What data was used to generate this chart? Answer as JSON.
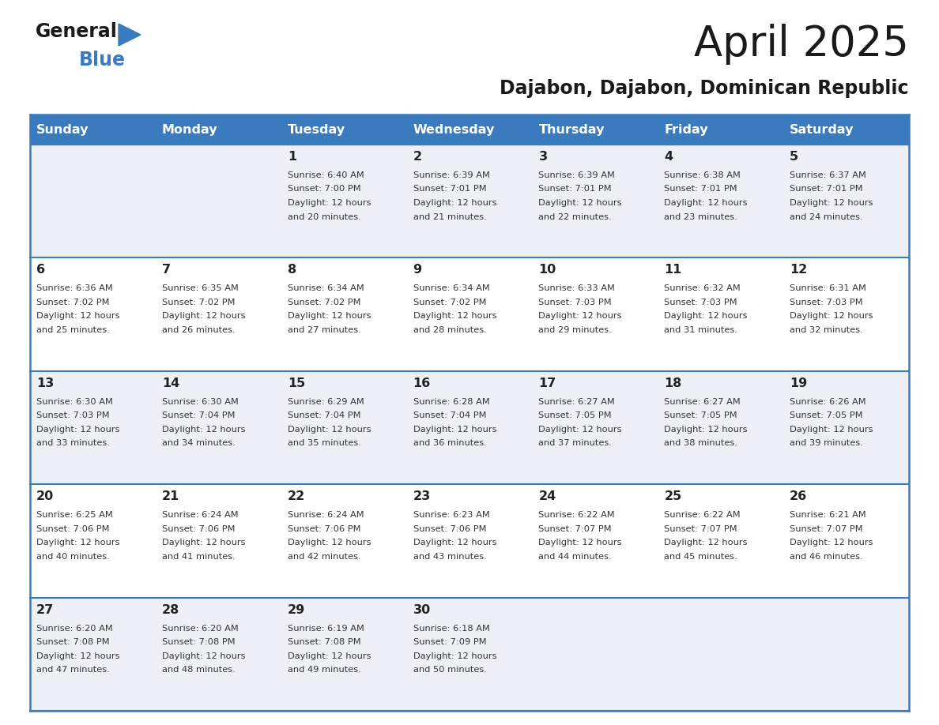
{
  "title": "April 2025",
  "subtitle": "Dajabon, Dajabon, Dominican Republic",
  "days_of_week": [
    "Sunday",
    "Monday",
    "Tuesday",
    "Wednesday",
    "Thursday",
    "Friday",
    "Saturday"
  ],
  "header_bg": "#3a7bbf",
  "header_text": "#ffffff",
  "row_bg_even": "#edf1f7",
  "row_bg_odd": "#ffffff",
  "cell_text_color": "#333333",
  "day_num_color": "#222222",
  "grid_line_color": "#3a7bbf",
  "calendar_data": [
    [
      {
        "day": "",
        "sunrise": "",
        "sunset": "",
        "daylight": ""
      },
      {
        "day": "",
        "sunrise": "",
        "sunset": "",
        "daylight": ""
      },
      {
        "day": "1",
        "sunrise": "6:40 AM",
        "sunset": "7:00 PM",
        "daylight": "12 hours\nand 20 minutes."
      },
      {
        "day": "2",
        "sunrise": "6:39 AM",
        "sunset": "7:01 PM",
        "daylight": "12 hours\nand 21 minutes."
      },
      {
        "day": "3",
        "sunrise": "6:39 AM",
        "sunset": "7:01 PM",
        "daylight": "12 hours\nand 22 minutes."
      },
      {
        "day": "4",
        "sunrise": "6:38 AM",
        "sunset": "7:01 PM",
        "daylight": "12 hours\nand 23 minutes."
      },
      {
        "day": "5",
        "sunrise": "6:37 AM",
        "sunset": "7:01 PM",
        "daylight": "12 hours\nand 24 minutes."
      }
    ],
    [
      {
        "day": "6",
        "sunrise": "6:36 AM",
        "sunset": "7:02 PM",
        "daylight": "12 hours\nand 25 minutes."
      },
      {
        "day": "7",
        "sunrise": "6:35 AM",
        "sunset": "7:02 PM",
        "daylight": "12 hours\nand 26 minutes."
      },
      {
        "day": "8",
        "sunrise": "6:34 AM",
        "sunset": "7:02 PM",
        "daylight": "12 hours\nand 27 minutes."
      },
      {
        "day": "9",
        "sunrise": "6:34 AM",
        "sunset": "7:02 PM",
        "daylight": "12 hours\nand 28 minutes."
      },
      {
        "day": "10",
        "sunrise": "6:33 AM",
        "sunset": "7:03 PM",
        "daylight": "12 hours\nand 29 minutes."
      },
      {
        "day": "11",
        "sunrise": "6:32 AM",
        "sunset": "7:03 PM",
        "daylight": "12 hours\nand 31 minutes."
      },
      {
        "day": "12",
        "sunrise": "6:31 AM",
        "sunset": "7:03 PM",
        "daylight": "12 hours\nand 32 minutes."
      }
    ],
    [
      {
        "day": "13",
        "sunrise": "6:30 AM",
        "sunset": "7:03 PM",
        "daylight": "12 hours\nand 33 minutes."
      },
      {
        "day": "14",
        "sunrise": "6:30 AM",
        "sunset": "7:04 PM",
        "daylight": "12 hours\nand 34 minutes."
      },
      {
        "day": "15",
        "sunrise": "6:29 AM",
        "sunset": "7:04 PM",
        "daylight": "12 hours\nand 35 minutes."
      },
      {
        "day": "16",
        "sunrise": "6:28 AM",
        "sunset": "7:04 PM",
        "daylight": "12 hours\nand 36 minutes."
      },
      {
        "day": "17",
        "sunrise": "6:27 AM",
        "sunset": "7:05 PM",
        "daylight": "12 hours\nand 37 minutes."
      },
      {
        "day": "18",
        "sunrise": "6:27 AM",
        "sunset": "7:05 PM",
        "daylight": "12 hours\nand 38 minutes."
      },
      {
        "day": "19",
        "sunrise": "6:26 AM",
        "sunset": "7:05 PM",
        "daylight": "12 hours\nand 39 minutes."
      }
    ],
    [
      {
        "day": "20",
        "sunrise": "6:25 AM",
        "sunset": "7:06 PM",
        "daylight": "12 hours\nand 40 minutes."
      },
      {
        "day": "21",
        "sunrise": "6:24 AM",
        "sunset": "7:06 PM",
        "daylight": "12 hours\nand 41 minutes."
      },
      {
        "day": "22",
        "sunrise": "6:24 AM",
        "sunset": "7:06 PM",
        "daylight": "12 hours\nand 42 minutes."
      },
      {
        "day": "23",
        "sunrise": "6:23 AM",
        "sunset": "7:06 PM",
        "daylight": "12 hours\nand 43 minutes."
      },
      {
        "day": "24",
        "sunrise": "6:22 AM",
        "sunset": "7:07 PM",
        "daylight": "12 hours\nand 44 minutes."
      },
      {
        "day": "25",
        "sunrise": "6:22 AM",
        "sunset": "7:07 PM",
        "daylight": "12 hours\nand 45 minutes."
      },
      {
        "day": "26",
        "sunrise": "6:21 AM",
        "sunset": "7:07 PM",
        "daylight": "12 hours\nand 46 minutes."
      }
    ],
    [
      {
        "day": "27",
        "sunrise": "6:20 AM",
        "sunset": "7:08 PM",
        "daylight": "12 hours\nand 47 minutes."
      },
      {
        "day": "28",
        "sunrise": "6:20 AM",
        "sunset": "7:08 PM",
        "daylight": "12 hours\nand 48 minutes."
      },
      {
        "day": "29",
        "sunrise": "6:19 AM",
        "sunset": "7:08 PM",
        "daylight": "12 hours\nand 49 minutes."
      },
      {
        "day": "30",
        "sunrise": "6:18 AM",
        "sunset": "7:09 PM",
        "daylight": "12 hours\nand 50 minutes."
      },
      {
        "day": "",
        "sunrise": "",
        "sunset": "",
        "daylight": ""
      },
      {
        "day": "",
        "sunrise": "",
        "sunset": "",
        "daylight": ""
      },
      {
        "day": "",
        "sunrise": "",
        "sunset": "",
        "daylight": ""
      }
    ]
  ]
}
